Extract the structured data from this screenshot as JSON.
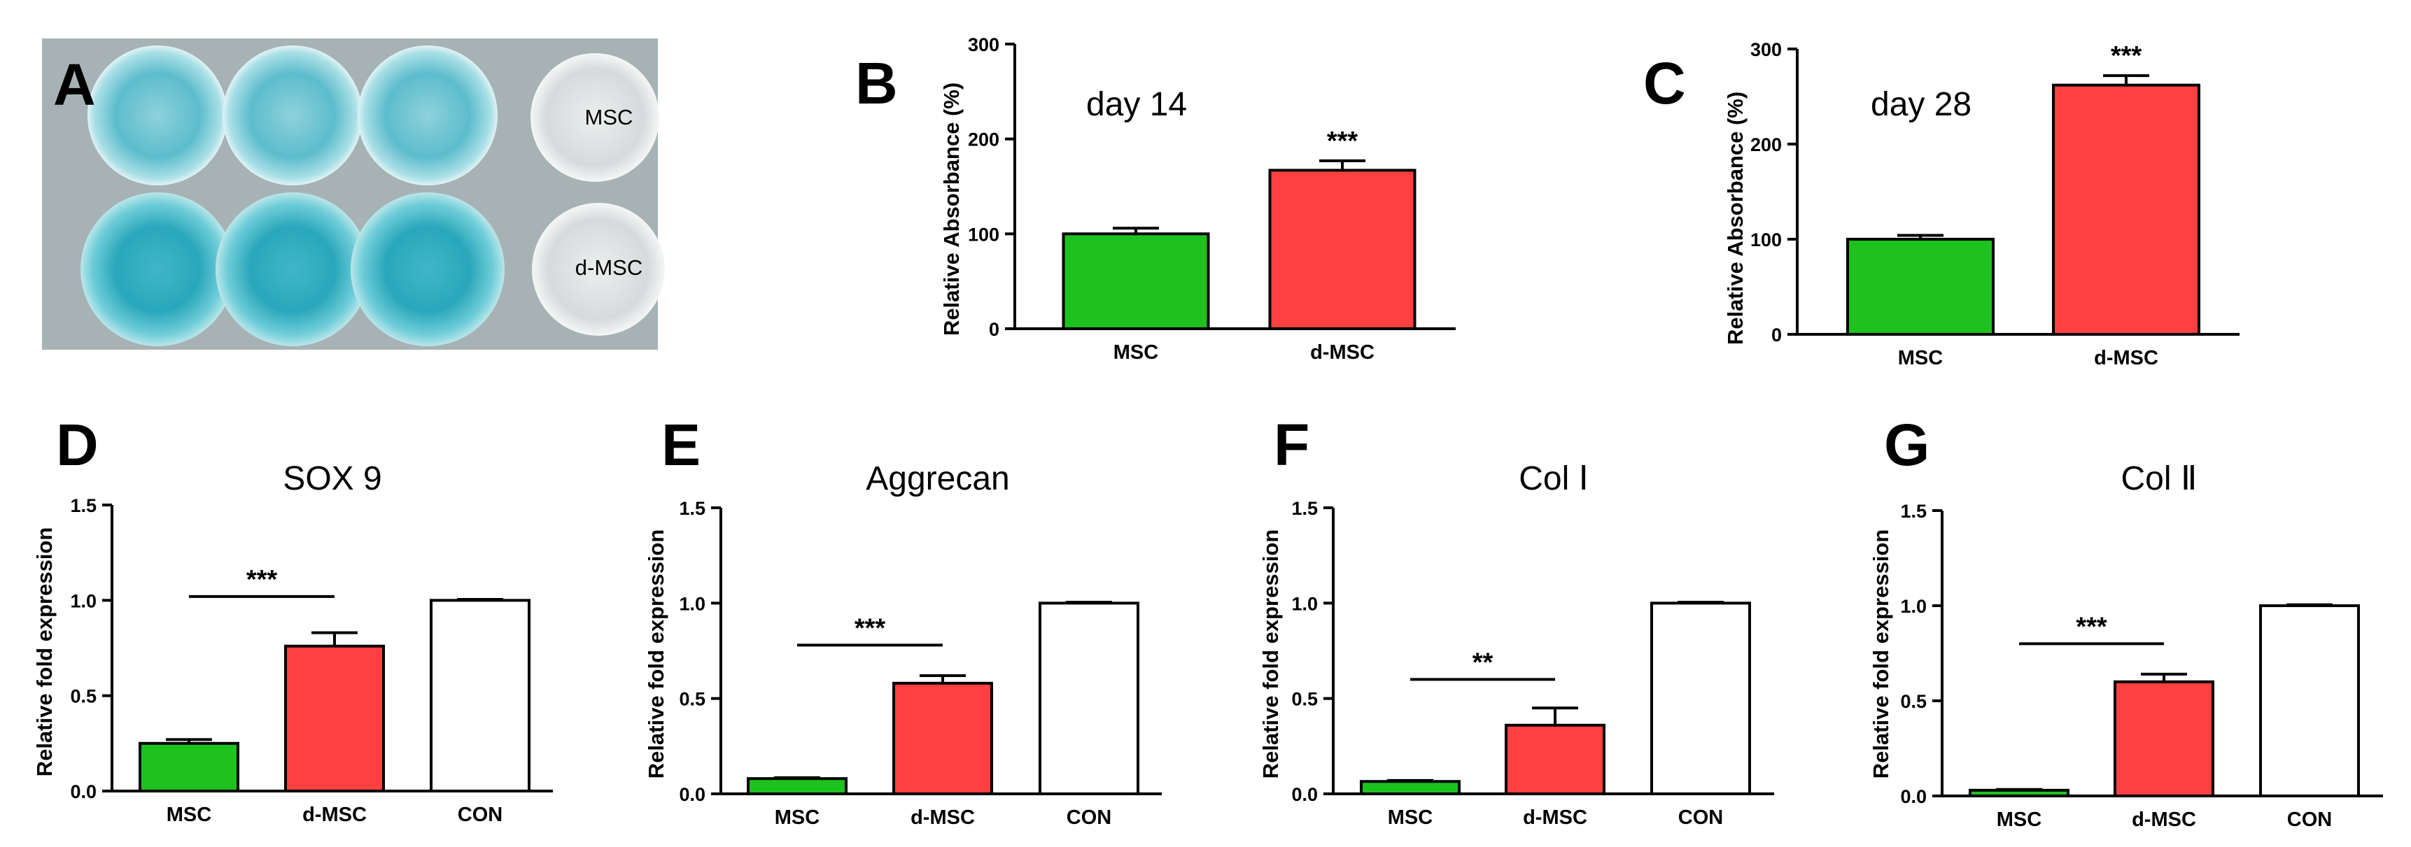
{
  "photo": {
    "label": "A",
    "row_labels": [
      "MSC",
      "d-MSC"
    ]
  },
  "colors": {
    "msc": "#1ec21e",
    "dmsc": "#ff4040",
    "con": "#ffffff",
    "well_blue": "#3bb3c4"
  },
  "chart_data": [
    {
      "id": "B",
      "label": "B",
      "type": "bar",
      "title": "day 14",
      "ylabel": "Relative Absorbance (%)",
      "xlabel": "",
      "ylim": [
        0,
        300
      ],
      "yticks": [
        0,
        100,
        200,
        300
      ],
      "categories": [
        "MSC",
        "d-MSC"
      ],
      "values": [
        100,
        167
      ],
      "errors": [
        6,
        10
      ],
      "significance": [
        {
          "text": "***",
          "over": 1,
          "bracket": false
        }
      ]
    },
    {
      "id": "C",
      "label": "C",
      "type": "bar",
      "title": "day 28",
      "ylabel": "Relative Absorbance (%)",
      "xlabel": "",
      "ylim": [
        0,
        300
      ],
      "yticks": [
        0,
        100,
        200,
        300
      ],
      "categories": [
        "MSC",
        "d-MSC"
      ],
      "values": [
        100,
        262
      ],
      "errors": [
        4,
        10
      ],
      "significance": [
        {
          "text": "***",
          "over": 1,
          "bracket": false
        }
      ]
    },
    {
      "id": "D",
      "label": "D",
      "type": "bar",
      "title": "SOX 9",
      "ylabel": "Relative fold expression",
      "xlabel": "",
      "ylim": [
        0,
        1.5
      ],
      "yticks": [
        "0.0",
        "0.5",
        "1.0",
        "1.5"
      ],
      "categories": [
        "MSC",
        "d-MSC",
        "CON"
      ],
      "values": [
        0.25,
        0.76,
        1.0
      ],
      "errors": [
        0.02,
        0.07,
        0.005
      ],
      "significance": [
        {
          "text": "***",
          "from": 0,
          "to": 1,
          "level": 1.02
        }
      ]
    },
    {
      "id": "E",
      "label": "E",
      "type": "bar",
      "title": "Aggrecan",
      "ylabel": "Relative fold expression",
      "xlabel": "",
      "ylim": [
        0,
        1.5
      ],
      "yticks": [
        "0.0",
        "0.5",
        "1.0",
        "1.5"
      ],
      "categories": [
        "MSC",
        "d-MSC",
        "CON"
      ],
      "values": [
        0.08,
        0.58,
        1.0
      ],
      "errors": [
        0.005,
        0.04,
        0.005
      ],
      "significance": [
        {
          "text": "***",
          "from": 0,
          "to": 1,
          "level": 0.78
        }
      ]
    },
    {
      "id": "F",
      "label": "F",
      "type": "bar",
      "title": "Col Ⅰ",
      "ylabel": "Relative fold expression",
      "xlabel": "",
      "ylim": [
        0,
        1.5
      ],
      "yticks": [
        "0.0",
        "0.5",
        "1.0",
        "1.5"
      ],
      "categories": [
        "MSC",
        "d-MSC",
        "CON"
      ],
      "values": [
        0.065,
        0.36,
        1.0
      ],
      "errors": [
        0.005,
        0.09,
        0.005
      ],
      "significance": [
        {
          "text": "**",
          "from": 0,
          "to": 1,
          "level": 0.6
        }
      ]
    },
    {
      "id": "G",
      "label": "G",
      "type": "bar",
      "title": "Col Ⅱ",
      "ylabel": "Relative fold expression",
      "xlabel": "",
      "ylim": [
        0,
        1.5
      ],
      "yticks": [
        "0.0",
        "0.5",
        "1.0",
        "1.5"
      ],
      "categories": [
        "MSC",
        "d-MSC",
        "CON"
      ],
      "values": [
        0.03,
        0.6,
        1.0
      ],
      "errors": [
        0.004,
        0.04,
        0.005
      ],
      "significance": [
        {
          "text": "***",
          "from": 0,
          "to": 1,
          "level": 0.8
        }
      ]
    }
  ]
}
